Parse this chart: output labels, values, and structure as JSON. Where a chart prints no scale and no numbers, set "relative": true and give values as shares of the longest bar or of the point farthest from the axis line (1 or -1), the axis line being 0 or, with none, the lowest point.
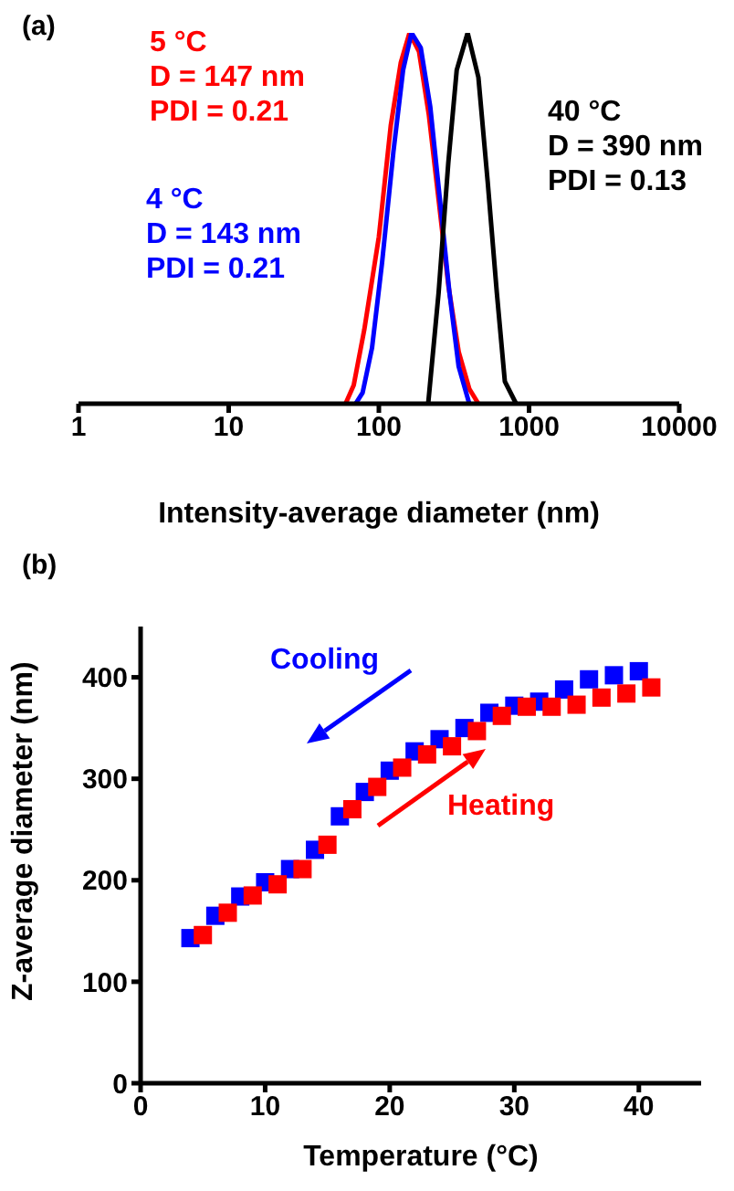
{
  "chart_data": [
    {
      "type": "line",
      "title": "(a)",
      "xlabel": "Intensity-average diameter (nm)",
      "log": "x",
      "xlim": [
        1,
        10000
      ],
      "xticks": [
        1,
        10,
        100,
        1000,
        10000
      ],
      "relative": true,
      "grid": false,
      "marker": "none",
      "line_style": "solid",
      "series": [
        {
          "name": "5 °C\nD = 147 nm\nPDI = 0.21",
          "color": "#ff0000",
          "x": [
            60,
            68,
            80,
            100,
            120,
            140,
            160,
            185,
            215,
            250,
            290,
            340,
            400,
            460
          ],
          "values": [
            0,
            0.05,
            0.2,
            0.45,
            0.75,
            0.92,
            1,
            0.95,
            0.78,
            0.55,
            0.32,
            0.14,
            0.04,
            0
          ]
        },
        {
          "name": "4 °C\nD = 143 nm\nPDI = 0.21",
          "color": "#0000ff",
          "x": [
            70,
            78,
            90,
            105,
            125,
            145,
            165,
            190,
            220,
            255,
            295,
            340,
            400
          ],
          "values": [
            0,
            0.03,
            0.15,
            0.38,
            0.68,
            0.9,
            1,
            0.96,
            0.8,
            0.55,
            0.3,
            0.1,
            0
          ]
        },
        {
          "name": "40 °C\nD = 390 nm\nPDI = 0.13",
          "color": "#000000",
          "x": [
            213,
            250,
            290,
            330,
            390,
            460,
            530,
            610,
            690,
            820
          ],
          "values": [
            0,
            0.3,
            0.65,
            0.9,
            1,
            0.88,
            0.6,
            0.3,
            0.06,
            0
          ]
        }
      ]
    },
    {
      "type": "scatter",
      "title": "(b)",
      "xlabel": "Temperature (°C)",
      "ylabel": "Z-average diameter (nm)",
      "xlim": [
        0,
        45
      ],
      "xticks": [
        0,
        10,
        20,
        30,
        40
      ],
      "ylim": [
        0,
        450
      ],
      "yticks": [
        0,
        100,
        200,
        300,
        400
      ],
      "grid": false,
      "marker": "square",
      "series": [
        {
          "name": "Cooling",
          "color": "#0000ff",
          "x": [
            4,
            6,
            8,
            10,
            12,
            14,
            16,
            18,
            20,
            22,
            24,
            26,
            28,
            30,
            32,
            34,
            36,
            38,
            40
          ],
          "values": [
            143,
            165,
            184,
            198,
            211,
            230,
            263,
            287,
            308,
            327,
            339,
            350,
            365,
            372,
            376,
            388,
            398,
            402,
            406
          ]
        },
        {
          "name": "Heating",
          "color": "#ff0000",
          "x": [
            5,
            7,
            9,
            11,
            13,
            15,
            17,
            19,
            21,
            23,
            25,
            27,
            29,
            31,
            33,
            35,
            37,
            39,
            41
          ],
          "values": [
            146,
            168,
            185,
            196,
            211,
            235,
            270,
            292,
            311,
            324,
            332,
            347,
            362,
            371,
            371,
            373,
            380,
            384,
            390
          ]
        }
      ]
    }
  ]
}
